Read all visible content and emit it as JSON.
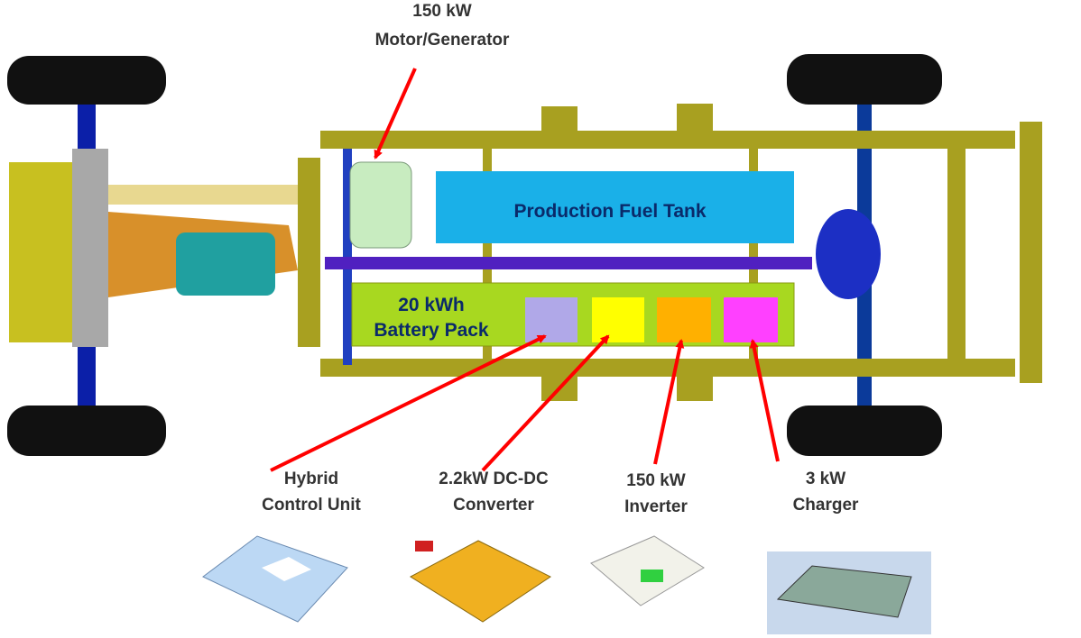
{
  "labels": {
    "motor": [
      "150 kW",
      "Motor/Generator"
    ],
    "fuel_tank": "Production Fuel Tank",
    "battery": [
      "20 kWh",
      "Battery Pack"
    ],
    "hcu": [
      "Hybrid",
      "Control Unit"
    ],
    "dcdc": [
      "2.2kW DC-DC",
      "Converter"
    ],
    "inverter": [
      "150 kW",
      "Inverter"
    ],
    "charger": [
      "3 kW",
      "Charger"
    ]
  }
}
